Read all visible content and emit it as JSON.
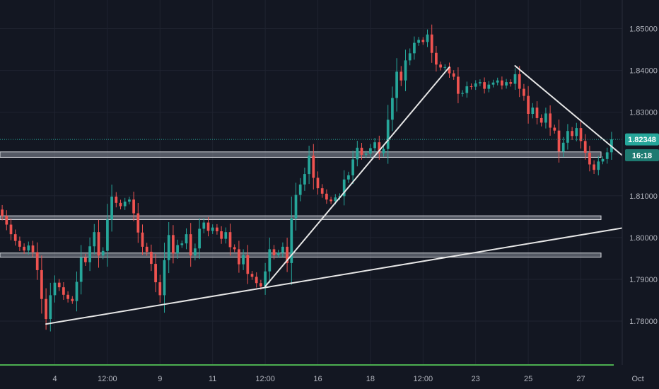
{
  "chart_data": {
    "type": "candlestick",
    "title": "",
    "xlabel": "",
    "ylabel": "",
    "ylim": [
      1.7712,
      1.8555
    ],
    "grid": true,
    "y_ticks": [
      "1.78000",
      "1.79000",
      "1.80000",
      "1.81000",
      "1.82000",
      "1.83000",
      "1.84000",
      "1.85000"
    ],
    "y_tick_values": [
      1.78,
      1.79,
      1.8,
      1.81,
      1.82,
      1.83,
      1.84,
      1.85
    ],
    "x_ticks": [
      "4",
      "12:00",
      "9",
      "11",
      "12:00",
      "16",
      "18",
      "12:00",
      "23",
      "25",
      "27",
      "Oct"
    ],
    "x_tick_index": [
      12,
      24,
      36,
      48,
      60,
      72,
      84,
      96,
      108,
      120,
      132,
      145
    ],
    "last_price": "1.82348",
    "last_price_value": 1.82348,
    "countdown": "16:18",
    "countdown_value": 1.8197,
    "closes": [
      1.8052,
      1.8031,
      1.8008,
      1.7992,
      1.7978,
      1.7969,
      1.7981,
      1.7965,
      1.7922,
      1.7853,
      1.7805,
      1.7862,
      1.7892,
      1.7881,
      1.7863,
      1.7853,
      1.7848,
      1.7894,
      1.7952,
      1.7941,
      1.7979,
      1.8013,
      1.7957,
      1.7968,
      1.8043,
      1.8098,
      1.8083,
      1.8075,
      1.8086,
      1.8091,
      1.8058,
      1.8012,
      1.7978,
      1.7966,
      1.7937,
      1.7893,
      1.7862,
      1.7946,
      1.8006,
      1.7962,
      1.7982,
      1.7986,
      1.8008,
      1.7957,
      1.7974,
      1.8021,
      1.8036,
      1.8016,
      1.8024,
      1.8015,
      1.7997,
      1.8013,
      1.7977,
      1.7972,
      1.7936,
      1.7958,
      1.7913,
      1.7906,
      1.7891,
      1.7883,
      1.7919,
      1.7972,
      1.7958,
      1.7964,
      1.7978,
      1.7939,
      1.8046,
      1.8102,
      1.8127,
      1.8152,
      1.8196,
      1.8143,
      1.8118,
      1.8105,
      1.8091,
      1.8087,
      1.8096,
      1.8099,
      1.8139,
      1.8149,
      1.8187,
      1.8215,
      1.8198,
      1.8201,
      1.8214,
      1.8228,
      1.8202,
      1.8212,
      1.8282,
      1.8334,
      1.8397,
      1.8376,
      1.8424,
      1.8441,
      1.8466,
      1.8473,
      1.8468,
      1.8486,
      1.8442,
      1.8414,
      1.8407,
      1.8408,
      1.8393,
      1.8385,
      1.8344,
      1.8346,
      1.8362,
      1.8361,
      1.8369,
      1.8372,
      1.8356,
      1.8366,
      1.8371,
      1.8376,
      1.8364,
      1.8372,
      1.8368,
      1.8391,
      1.8356,
      1.8339,
      1.8296,
      1.8311,
      1.8286,
      1.8275,
      1.8297,
      1.8263,
      1.8256,
      1.8206,
      1.8227,
      1.8255,
      1.8243,
      1.8262,
      1.8231,
      1.8203,
      1.8175,
      1.8162,
      1.8182,
      1.8188,
      1.8204,
      1.8235
    ]
  },
  "drawings": {
    "zones": [
      {
        "top": 1.8205,
        "bottom": 1.8192,
        "name": "zone-1.820"
      },
      {
        "top": 1.8052,
        "bottom": 1.8043,
        "name": "zone-1.805"
      },
      {
        "top": 1.7963,
        "bottom": 1.7953,
        "name": "zone-1.796"
      }
    ],
    "trendlines": [
      {
        "name": "long-support-trendline",
        "x1": 10,
        "y1": 1.7793,
        "x2": 149,
        "y2": 1.8036
      },
      {
        "name": "rally-trendline",
        "x1": 60,
        "y1": 1.7883,
        "x2": 102,
        "y2": 1.8408
      },
      {
        "name": "descending-trendline",
        "x1": 117,
        "y1": 1.8411,
        "x2": 143,
        "y2": 1.8183
      }
    ]
  },
  "colors": {
    "background": "#131722",
    "grid": "#1f2330",
    "up": "#26a69a",
    "down": "#ef5350",
    "price_line": "#26a69a",
    "zone_fill": "#8a8f9a",
    "trendline": "#e6e6e6",
    "axis_text": "#b2b5be",
    "bottom_line": "#4caf50"
  }
}
